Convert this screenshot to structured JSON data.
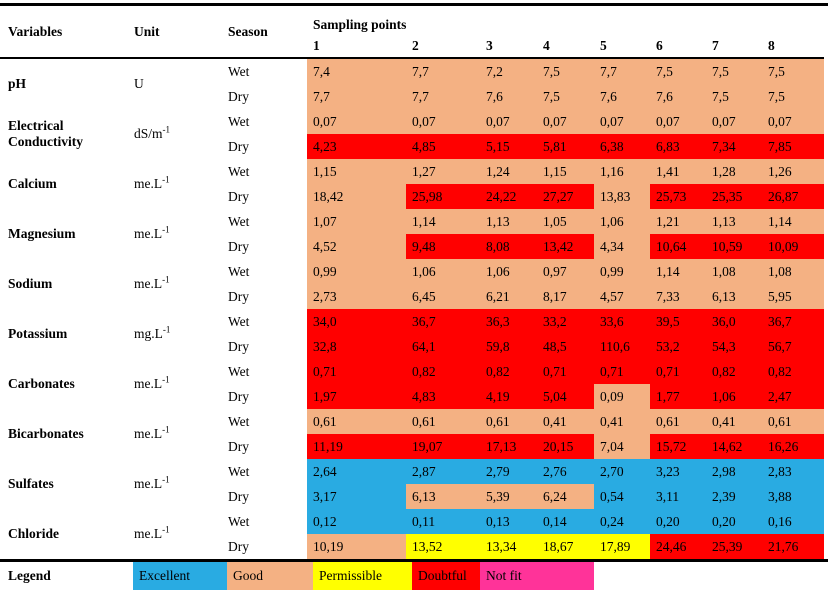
{
  "colors": {
    "excellent": "#29ABE2",
    "good": "#F4B183",
    "permissible": "#FFFF00",
    "doubtful": "#FF0000",
    "not_fit": "#FF3399"
  },
  "table": {
    "headers": {
      "variables": "Variables",
      "unit": "Unit",
      "season": "Season",
      "sampling_points": "Sampling points",
      "point_labels": [
        "1",
        "2",
        "3",
        "4",
        "5",
        "6",
        "7",
        "8"
      ]
    },
    "season_labels": {
      "wet": "Wet",
      "dry": "Dry"
    },
    "color_codes": {
      "E": "excellent",
      "G": "good",
      "P": "permissible",
      "D": "doubtful"
    },
    "rows": [
      {
        "variable": "pH",
        "unit": "U",
        "unit_sup": "",
        "wet_values": [
          "7,4",
          "7,7",
          "7,2",
          "7,5",
          "7,7",
          "7,5",
          "7,5",
          "7,5"
        ],
        "wet_colors": "GGGGGGGG",
        "dry_values": [
          "7,7",
          "7,7",
          "7,6",
          "7,5",
          "7,6",
          "7,6",
          "7,5",
          "7,5"
        ],
        "dry_colors": "GGGGGGGG"
      },
      {
        "variable": "Electrical Conductivity",
        "unit": "dS/m",
        "unit_sup": "-1",
        "wet_values": [
          "0,07",
          "0,07",
          "0,07",
          "0,07",
          "0,07",
          "0,07",
          "0,07",
          "0,07"
        ],
        "wet_colors": "GGGGGGGG",
        "dry_values": [
          "4,23",
          "4,85",
          "5,15",
          "5,81",
          "6,38",
          "6,83",
          "7,34",
          "7,85"
        ],
        "dry_colors": "DDDDDDDD"
      },
      {
        "variable": "Calcium",
        "unit": "me.L",
        "unit_sup": "-1",
        "wet_values": [
          "1,15",
          "1,27",
          "1,24",
          "1,15",
          "1,16",
          "1,41",
          "1,28",
          "1,26"
        ],
        "wet_colors": "GGGGGGGG",
        "dry_values": [
          "18,42",
          "25,98",
          "24,22",
          "27,27",
          "13,83",
          "25,73",
          "25,35",
          "26,87"
        ],
        "dry_colors": "GDDDGDDD"
      },
      {
        "variable": "Magnesium",
        "unit": "me.L",
        "unit_sup": "-1",
        "wet_values": [
          "1,07",
          "1,14",
          "1,13",
          "1,05",
          "1,06",
          "1,21",
          "1,13",
          "1,14"
        ],
        "wet_colors": "GGGGGGGG",
        "dry_values": [
          "4,52",
          "9,48",
          "8,08",
          "13,42",
          "4,34",
          "10,64",
          "10,59",
          "10,09"
        ],
        "dry_colors": "GDDDGDDD"
      },
      {
        "variable": "Sodium",
        "unit": "me.L",
        "unit_sup": "-1",
        "wet_values": [
          "0,99",
          "1,06",
          "1,06",
          "0,97",
          "0,99",
          "1,14",
          "1,08",
          "1,08"
        ],
        "wet_colors": "GGGGGGGG",
        "dry_values": [
          "2,73",
          "6,45",
          "6,21",
          "8,17",
          "4,57",
          "7,33",
          "6,13",
          "5,95"
        ],
        "dry_colors": "GGGGGGGG"
      },
      {
        "variable": "Potassium",
        "unit": "mg.L",
        "unit_sup": "-1",
        "wet_values": [
          "34,0",
          "36,7",
          "36,3",
          "33,2",
          "33,6",
          "39,5",
          "36,0",
          "36,7"
        ],
        "wet_colors": "DDDDDDDD",
        "dry_values": [
          "32,8",
          "64,1",
          "59,8",
          "48,5",
          "110,6",
          "53,2",
          "54,3",
          "56,7"
        ],
        "dry_colors": "DDDDDDDD"
      },
      {
        "variable": "Carbonates",
        "unit": "me.L",
        "unit_sup": "-1",
        "wet_values": [
          "0,71",
          "0,82",
          "0,82",
          "0,71",
          "0,71",
          "0,71",
          "0,82",
          "0,82"
        ],
        "wet_colors": "DDDDDDDD",
        "dry_values": [
          "1,97",
          "4,83",
          "4,19",
          "5,04",
          "0,09",
          "1,77",
          "1,06",
          "2,47"
        ],
        "dry_colors": "DDDDGDDD"
      },
      {
        "variable": "Bicarbonates",
        "unit": "me.L",
        "unit_sup": "-1",
        "wet_values": [
          "0,61",
          "0,61",
          "0,61",
          "0,41",
          "0,41",
          "0,61",
          "0,41",
          "0,61"
        ],
        "wet_colors": "GGGGGGGG",
        "dry_values": [
          "11,19",
          "19,07",
          "17,13",
          "20,15",
          "7,04",
          "15,72",
          "14,62",
          "16,26"
        ],
        "dry_colors": "DDDDGDDD"
      },
      {
        "variable": "Sulfates",
        "unit": "me.L",
        "unit_sup": "-1",
        "wet_values": [
          "2,64",
          "2,87",
          "2,79",
          "2,76",
          "2,70",
          "3,23",
          "2,98",
          "2,83"
        ],
        "wet_colors": "EEEEEEEE",
        "dry_values": [
          "3,17",
          "6,13",
          "5,39",
          "6,24",
          "0,54",
          "3,11",
          "2,39",
          "3,88"
        ],
        "dry_colors": "EGGGEEEE"
      },
      {
        "variable": "Chloride",
        "unit": "me.L",
        "unit_sup": "-1",
        "wet_values": [
          "0,12",
          "0,11",
          "0,13",
          "0,14",
          "0,24",
          "0,20",
          "0,20",
          "0,16"
        ],
        "wet_colors": "EEEEEEEE",
        "dry_values": [
          "10,19",
          "13,52",
          "13,34",
          "18,67",
          "17,89",
          "24,46",
          "25,39",
          "21,76"
        ],
        "dry_colors": "GPPPPDDD"
      }
    ]
  },
  "legend": {
    "label": "Legend",
    "items": [
      {
        "label": "Excellent",
        "color_key": "excellent"
      },
      {
        "label": "Good",
        "color_key": "good"
      },
      {
        "label": "Permissible",
        "color_key": "permissible"
      },
      {
        "label": "Doubtful",
        "color_key": "doubtful"
      },
      {
        "label": "Not fit",
        "color_key": "not_fit"
      }
    ]
  }
}
